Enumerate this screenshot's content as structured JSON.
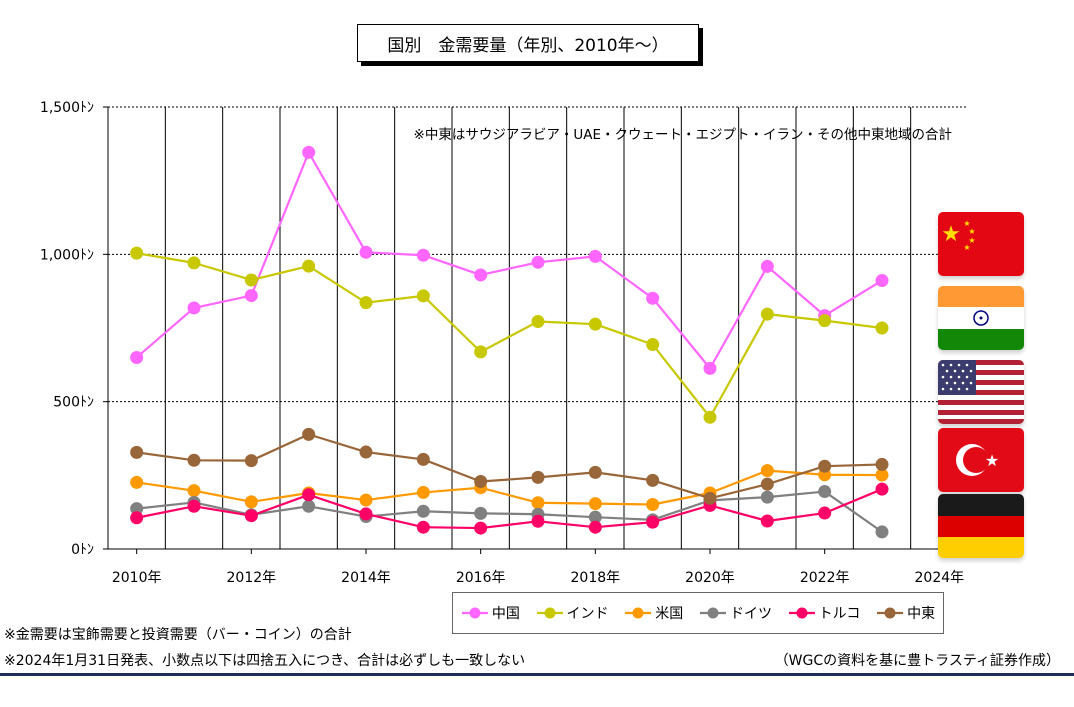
{
  "title": "国別　金需要量（年別、2010年～）",
  "annotation": "※中東はサウジアラビア・UAE・クウェート・エジプト・イラン・その他中東地域の合計",
  "notes": [
    "※金需要は宝飾需要と投資需要（バー・コイン）の合計",
    "※2024年1月31日発表、小数点以下は四捨五入につき、合計は必ずしも一致しない"
  ],
  "source": "（WGCの資料を基に豊トラスティ証券作成）",
  "flags": [
    {
      "country": "china",
      "icon": "china-flag-icon"
    },
    {
      "country": "india",
      "icon": "india-flag-icon"
    },
    {
      "country": "usa",
      "icon": "usa-flag-icon"
    },
    {
      "country": "turkey",
      "icon": "turkey-flag-icon"
    },
    {
      "country": "germany",
      "icon": "germany-flag-icon"
    }
  ],
  "chart_data": {
    "type": "line",
    "x": [
      2010,
      2011,
      2012,
      2013,
      2014,
      2015,
      2016,
      2017,
      2018,
      2019,
      2020,
      2021,
      2022,
      2023
    ],
    "xlim": [
      2009.5,
      2024.5
    ],
    "x_ticks": [
      {
        "value": 2010,
        "label": "2010年"
      },
      {
        "value": 2012,
        "label": "2012年"
      },
      {
        "value": 2014,
        "label": "2014年"
      },
      {
        "value": 2016,
        "label": "2016年"
      },
      {
        "value": 2018,
        "label": "2018年"
      },
      {
        "value": 2020,
        "label": "2020年"
      },
      {
        "value": 2022,
        "label": "2022年"
      },
      {
        "value": 2024,
        "label": "2024年"
      }
    ],
    "ylim": [
      0,
      1500
    ],
    "y_ticks": [
      {
        "value": 0,
        "label": "0ﾄﾝ"
      },
      {
        "value": 500,
        "label": "500ﾄﾝ"
      },
      {
        "value": 1000,
        "label": "1,000ﾄﾝ"
      },
      {
        "value": 1500,
        "label": "1,500ﾄﾝ"
      }
    ],
    "legend_position": "bottom",
    "series": [
      {
        "name": "中国",
        "color": "#ff66ff",
        "values": [
          650,
          818,
          860,
          1346,
          1007,
          997,
          930,
          973,
          993,
          851,
          613,
          959,
          792,
          911
        ]
      },
      {
        "name": "インド",
        "color": "#c8c800",
        "values": [
          1004,
          971,
          913,
          960,
          836,
          859,
          669,
          772,
          763,
          694,
          447,
          797,
          775,
          750
        ]
      },
      {
        "name": "米国",
        "color": "#ff9900",
        "values": [
          226,
          198,
          160,
          190,
          166,
          192,
          208,
          157,
          154,
          151,
          190,
          266,
          252,
          251
        ]
      },
      {
        "name": "ドイツ",
        "color": "#808080",
        "values": [
          137,
          158,
          116,
          145,
          110,
          128,
          121,
          118,
          108,
          99,
          165,
          176,
          195,
          58
        ]
      },
      {
        "name": "トルコ",
        "color": "#ff0066",
        "values": [
          106,
          145,
          113,
          184,
          119,
          74,
          71,
          94,
          74,
          91,
          148,
          95,
          122,
          203
        ]
      },
      {
        "name": "中東",
        "color": "#99663a",
        "values": [
          328,
          301,
          300,
          389,
          329,
          304,
          229,
          243,
          260,
          233,
          172,
          220,
          281,
          287
        ]
      }
    ]
  }
}
